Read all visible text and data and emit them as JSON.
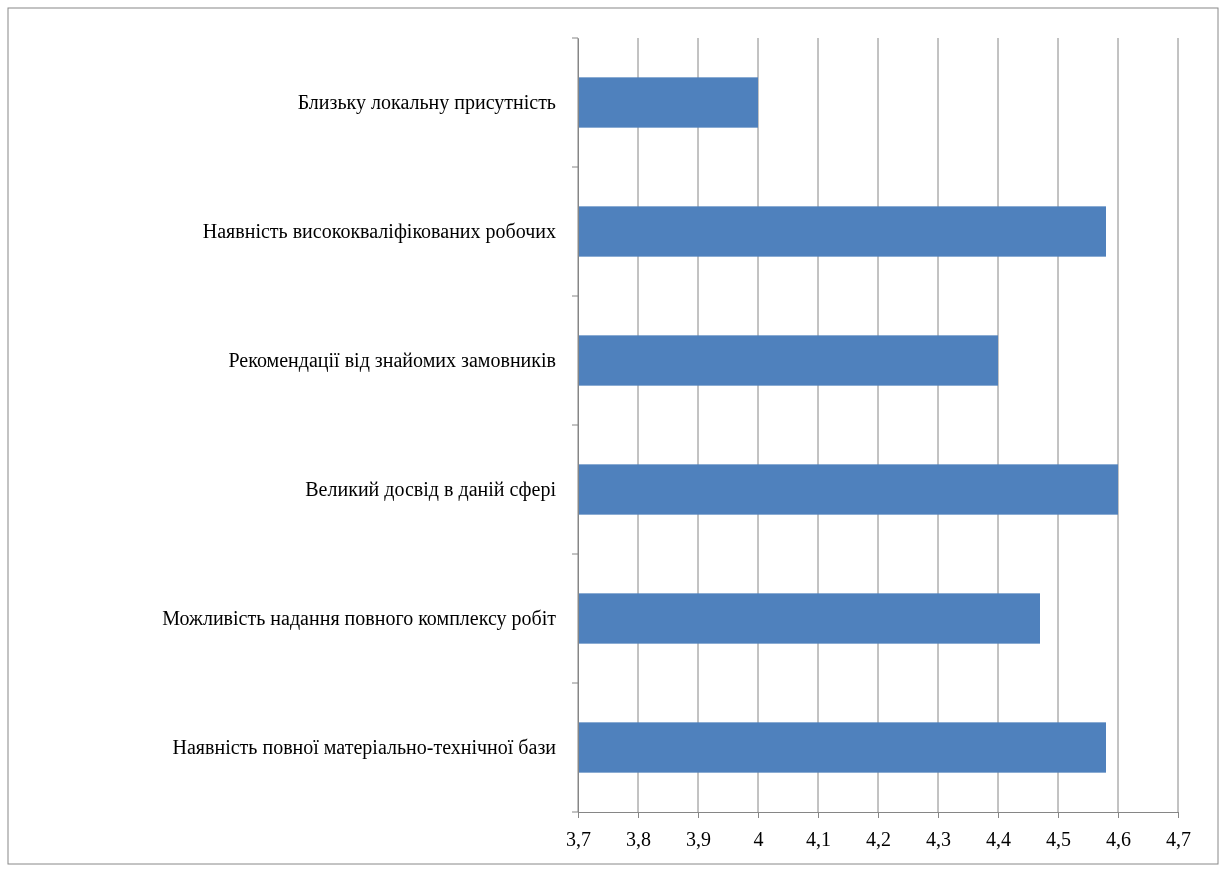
{
  "chart_data": {
    "type": "bar",
    "orientation": "horizontal",
    "categories": [
      "Близьку локальну присутність",
      "Наявність висококваліфікованих робочих",
      "Рекомендації від знайомих замовників",
      "Великий досвід в даній сфері",
      "Можливість надання повного комплексу робіт",
      "Наявність повної матеріально-технічної бази"
    ],
    "values": [
      4.0,
      4.58,
      4.4,
      4.6,
      4.47,
      4.58
    ],
    "color": "#4f81bd",
    "xlim": [
      3.7,
      4.7
    ],
    "xticks": [
      {
        "value": 3.7,
        "label": "3,7"
      },
      {
        "value": 3.8,
        "label": "3,8"
      },
      {
        "value": 3.9,
        "label": "3,9"
      },
      {
        "value": 4,
        "label": "4"
      },
      {
        "value": 4.1,
        "label": "4,1"
      },
      {
        "value": 4.2,
        "label": "4,2"
      },
      {
        "value": 4.3,
        "label": "4,3"
      },
      {
        "value": 4.4,
        "label": "4,4"
      },
      {
        "value": 4.5,
        "label": "4,5"
      },
      {
        "value": 4.6,
        "label": "4,6"
      },
      {
        "value": 4.7,
        "label": "4,7"
      }
    ],
    "grid": "x"
  }
}
